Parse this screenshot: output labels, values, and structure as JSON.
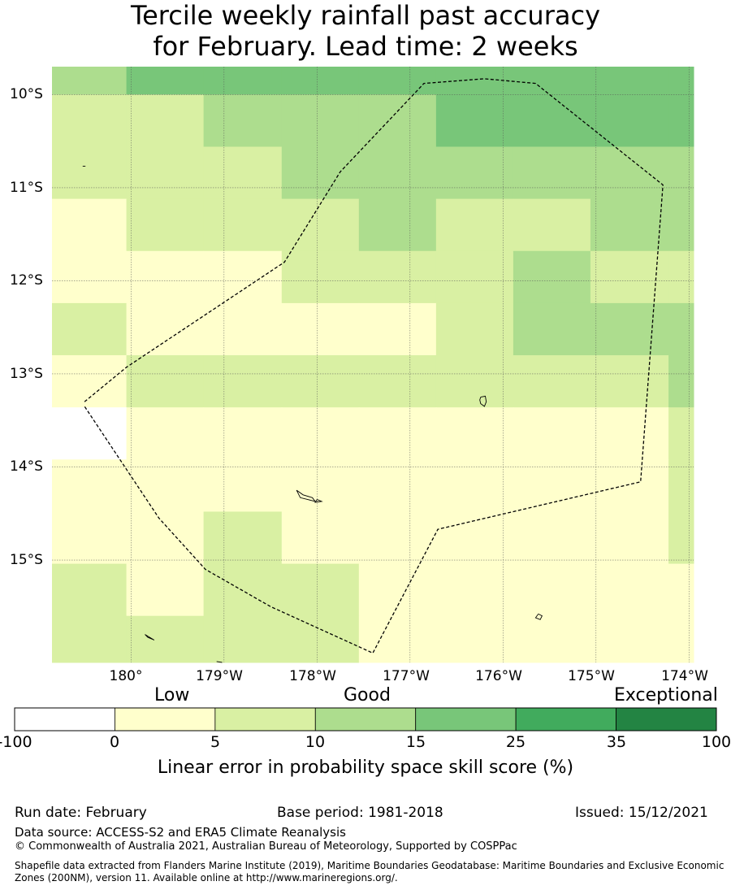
{
  "title": {
    "line1": "Tercile weekly rainfall past accuracy",
    "line2": "for February. Lead time: 2 weeks"
  },
  "map": {
    "lon_range": [
      -180.85,
      -173.95
    ],
    "lat_range": [
      -16.1,
      -9.7
    ],
    "lat_ticks": [
      {
        "value": -10,
        "label": "10°S"
      },
      {
        "value": -11,
        "label": "11°S"
      },
      {
        "value": -12,
        "label": "12°S"
      },
      {
        "value": -13,
        "label": "13°S"
      },
      {
        "value": -14,
        "label": "14°S"
      },
      {
        "value": -15,
        "label": "15°S"
      }
    ],
    "lon_ticks": [
      {
        "value": -180,
        "label": "180°"
      },
      {
        "value": -179,
        "label": "179°W"
      },
      {
        "value": -178,
        "label": "178°W"
      },
      {
        "value": -177,
        "label": "177°W"
      },
      {
        "value": -176,
        "label": "176°W"
      },
      {
        "value": -175,
        "label": "175°W"
      },
      {
        "value": -174,
        "label": "174°W"
      }
    ],
    "grid": {
      "col_edges": [
        -180.85,
        -180.05,
        -179.22,
        -178.38,
        -177.55,
        -176.72,
        -175.89,
        -175.06,
        -174.22,
        -173.95
      ],
      "row_edges": [
        -9.7,
        -10.0,
        -10.56,
        -11.12,
        -11.68,
        -12.24,
        -12.8,
        -13.36,
        -13.92,
        -14.48,
        -15.04,
        -15.6,
        -16.1
      ],
      "classes": [
        [
          3,
          4,
          4,
          4,
          4,
          4,
          4,
          4,
          4
        ],
        [
          2,
          2,
          3,
          3,
          3,
          4,
          4,
          4,
          4
        ],
        [
          2,
          2,
          2,
          3,
          3,
          3,
          3,
          3,
          3
        ],
        [
          1,
          2,
          2,
          2,
          3,
          2,
          2,
          3,
          3
        ],
        [
          1,
          1,
          1,
          2,
          2,
          2,
          3,
          2,
          2
        ],
        [
          2,
          1,
          1,
          1,
          1,
          2,
          3,
          3,
          3
        ],
        [
          1,
          2,
          2,
          2,
          2,
          2,
          2,
          2,
          3
        ],
        [
          0,
          1,
          1,
          1,
          1,
          1,
          1,
          1,
          2
        ],
        [
          1,
          1,
          1,
          1,
          1,
          1,
          1,
          1,
          2
        ],
        [
          1,
          1,
          2,
          1,
          1,
          1,
          1,
          1,
          2
        ],
        [
          2,
          1,
          2,
          2,
          1,
          1,
          1,
          1,
          1
        ],
        [
          2,
          2,
          2,
          2,
          1,
          1,
          1,
          1,
          1
        ]
      ]
    },
    "boundary": [
      [
        -180.5,
        -13.3
      ],
      [
        -180.05,
        -12.93
      ],
      [
        -178.35,
        -11.8
      ],
      [
        -177.75,
        -10.83
      ],
      [
        -176.85,
        -9.88
      ],
      [
        -176.2,
        -9.83
      ],
      [
        -175.65,
        -9.88
      ],
      [
        -174.28,
        -10.97
      ],
      [
        -174.52,
        -14.16
      ],
      [
        -176.7,
        -14.67
      ],
      [
        -177.4,
        -16.0
      ],
      [
        -178.5,
        -15.5
      ],
      [
        -179.2,
        -15.1
      ],
      [
        -179.7,
        -14.55
      ],
      [
        -180.5,
        -13.35
      ]
    ],
    "islands": [
      [
        [
          -180.52,
          -10.77
        ],
        [
          -180.49,
          -10.77
        ]
      ],
      [
        [
          -176.24,
          -13.25
        ],
        [
          -176.19,
          -13.24
        ],
        [
          -176.18,
          -13.3
        ],
        [
          -176.2,
          -13.35
        ],
        [
          -176.24,
          -13.32
        ],
        [
          -176.25,
          -13.28
        ],
        [
          -176.24,
          -13.25
        ]
      ],
      [
        [
          -178.22,
          -14.25
        ],
        [
          -178.15,
          -14.3
        ],
        [
          -178.05,
          -14.33
        ],
        [
          -178.02,
          -14.37
        ],
        [
          -178.1,
          -14.35
        ],
        [
          -178.18,
          -14.33
        ],
        [
          -178.22,
          -14.25
        ]
      ],
      [
        [
          -178.0,
          -14.35
        ],
        [
          -177.95,
          -14.37
        ],
        [
          -178.02,
          -14.38
        ],
        [
          -178.0,
          -14.35
        ]
      ],
      [
        [
          -175.62,
          -15.58
        ],
        [
          -175.58,
          -15.6
        ],
        [
          -175.6,
          -15.64
        ],
        [
          -175.65,
          -15.62
        ],
        [
          -175.62,
          -15.58
        ]
      ],
      [
        [
          -179.85,
          -15.8
        ],
        [
          -179.75,
          -15.86
        ],
        [
          -179.82,
          -15.83
        ],
        [
          -179.85,
          -15.8
        ]
      ],
      [
        [
          -179.08,
          -16.09
        ],
        [
          -179.02,
          -16.1
        ]
      ]
    ]
  },
  "colorbar": {
    "colors": [
      "#ffffff",
      "#ffffcc",
      "#d9f0a3",
      "#addd8e",
      "#78c679",
      "#41ab5d",
      "#238443"
    ],
    "ticks": [
      "-100",
      "0",
      "5",
      "10",
      "15",
      "25",
      "35",
      "100"
    ],
    "categories": {
      "low": "Low",
      "good": "Good",
      "exceptional": "Exceptional"
    },
    "title": "Linear error in probability space skill score (%)"
  },
  "footer": {
    "run_date": "Run date: February",
    "base_period": "Base period: 1981-2018",
    "issued": "Issued: 15/12/2021",
    "data_source": "Data source: ACCESS-S2 and ERA5 Climate Reanalysis",
    "copyright": "© Commonwealth of Australia 2021, Australian Bureau of Meteorology, Supported by COSPPac",
    "shapefile_line1": "Shapefile data extracted from Flanders Marine Institute (2019), Maritime Boundaries Geodatabase: Maritime Boundaries and Exclusive Economic",
    "shapefile_line2": "Zones (200NM), version 11. Available online at http://www.marineregions.org/."
  }
}
